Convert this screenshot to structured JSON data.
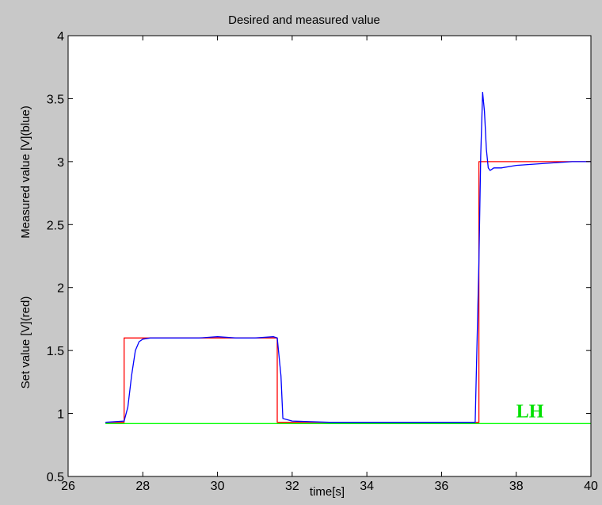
{
  "chart_data": {
    "type": "line",
    "title": "Desired and measured value",
    "xlabel": "time[s]",
    "ylabel_top": "Measured value  [V](blue)",
    "ylabel_bottom": "Set value  [V](red)",
    "xlim": [
      26,
      40
    ],
    "ylim": [
      0.5,
      4
    ],
    "x_ticks": [
      26,
      28,
      30,
      32,
      34,
      36,
      38,
      40
    ],
    "y_ticks": [
      0.5,
      1,
      1.5,
      2,
      2.5,
      3,
      3.5,
      4
    ],
    "x_tick_labels": [
      "26",
      "28",
      "30",
      "32",
      "34",
      "36",
      "38",
      "40"
    ],
    "y_tick_labels": [
      "0.5",
      "1",
      "1.5",
      "2",
      "2.5",
      "3",
      "3.5",
      "4"
    ],
    "grid": false,
    "plot_background": "#ffffff",
    "figure_background": "#c8c8c8",
    "series": [
      {
        "color": "#ff0000",
        "x": [
          27.0,
          27.5,
          27.5,
          31.6,
          31.6,
          37.0,
          37.0,
          40.0
        ],
        "y": [
          0.93,
          0.93,
          1.6,
          1.6,
          0.93,
          0.93,
          3.0,
          3.0
        ]
      },
      {
        "color": "#0000ff",
        "x": [
          27.0,
          27.5,
          27.6,
          27.7,
          27.8,
          27.9,
          28.0,
          28.2,
          28.5,
          29.0,
          29.5,
          30.0,
          30.5,
          31.0,
          31.5,
          31.6,
          31.7,
          31.75,
          32.0,
          33.0,
          34.0,
          35.0,
          36.0,
          36.9,
          37.0,
          37.05,
          37.1,
          37.15,
          37.2,
          37.25,
          37.3,
          37.35,
          37.4,
          37.6,
          38.0,
          38.5,
          39.0,
          39.5,
          40.0
        ],
        "y": [
          0.93,
          0.94,
          1.05,
          1.3,
          1.5,
          1.57,
          1.59,
          1.6,
          1.6,
          1.6,
          1.6,
          1.61,
          1.6,
          1.6,
          1.61,
          1.6,
          1.3,
          0.96,
          0.94,
          0.93,
          0.93,
          0.93,
          0.93,
          0.93,
          2.2,
          3.05,
          3.55,
          3.4,
          3.1,
          2.95,
          2.93,
          2.94,
          2.95,
          2.95,
          2.97,
          2.98,
          2.99,
          3.0,
          3.0
        ]
      },
      {
        "color": "#00ff00",
        "x": [
          27.0,
          40.0
        ],
        "y": [
          0.92,
          0.92
        ]
      }
    ],
    "annotations": [
      {
        "text": "LH",
        "x": 38.0,
        "y": 0.97,
        "color": "#00e000"
      }
    ]
  }
}
